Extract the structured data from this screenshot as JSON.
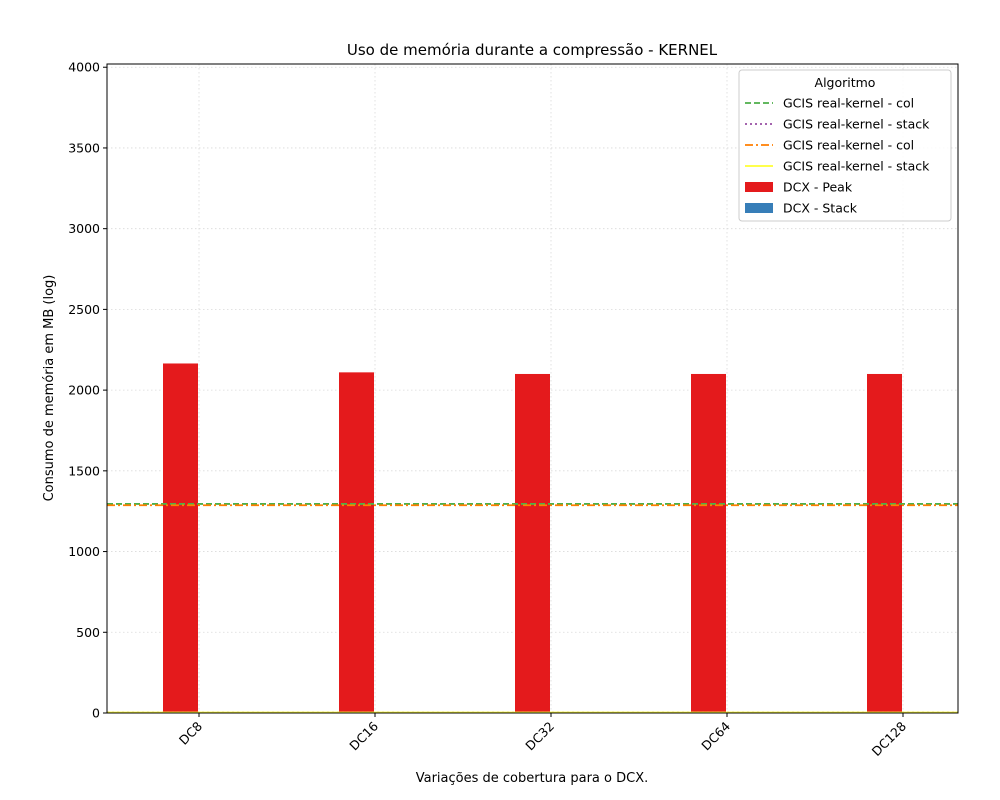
{
  "chart_data": {
    "type": "bar",
    "title": "Uso de memória durante a compressão -  KERNEL",
    "xlabel": "Variações de cobertura para o DCX.",
    "ylabel": "Consumo de memória em MB (log)",
    "categories": [
      "DC8",
      "DC16",
      "DC32",
      "DC64",
      "DC128"
    ],
    "ylim": [
      0,
      4020
    ],
    "yticks": [
      0,
      500,
      1000,
      1500,
      2000,
      2500,
      3000,
      3500,
      4000
    ],
    "grid": true,
    "series": [
      {
        "name": "DCX - Peak",
        "color": "#e41a1c",
        "values": [
          2165,
          2110,
          2100,
          2100,
          2100
        ]
      },
      {
        "name": "DCX - Stack",
        "color": "#377eb8",
        "values": [
          0,
          0,
          0,
          0,
          0
        ]
      }
    ],
    "reference_lines": [
      {
        "name": "GCIS real-kernel - col",
        "color": "#4daf4a",
        "style": "dashed",
        "value": 1295
      },
      {
        "name": "GCIS real-kernel - stack",
        "color": "#984ea3",
        "style": "dotted",
        "value": 3
      },
      {
        "name": "GCIS real-kernel - col",
        "color": "#ff7f00",
        "style": "dashdot",
        "value": 1287
      },
      {
        "name": "GCIS real-kernel - stack",
        "color": "#ffff33",
        "style": "solid",
        "value": 3
      }
    ],
    "legend": {
      "title": "Algoritmo",
      "placement": "top-right",
      "entries": [
        {
          "label": "GCIS real-kernel - col",
          "kind": "line",
          "color": "#4daf4a",
          "style": "dashed"
        },
        {
          "label": "GCIS real-kernel - stack",
          "kind": "line",
          "color": "#984ea3",
          "style": "dotted"
        },
        {
          "label": "GCIS real-kernel - col",
          "kind": "line",
          "color": "#ff7f00",
          "style": "dashdot"
        },
        {
          "label": "GCIS real-kernel - stack",
          "kind": "line",
          "color": "#ffff33",
          "style": "solid"
        },
        {
          "label": "DCX - Peak",
          "kind": "patch",
          "color": "#e41a1c"
        },
        {
          "label": "DCX - Stack",
          "kind": "patch",
          "color": "#377eb8"
        }
      ]
    }
  }
}
